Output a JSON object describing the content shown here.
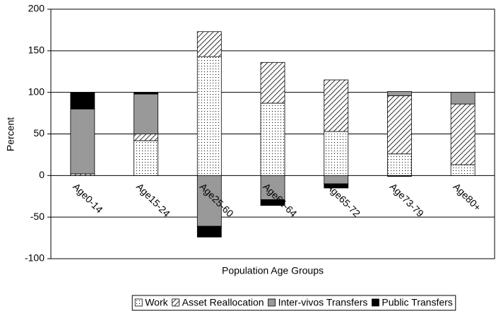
{
  "chart_data": {
    "type": "stacked_bar",
    "x_label": "Population Age Groups",
    "y_label": "Percent",
    "categories": [
      "Age0-14",
      "Age15-24",
      "Age25-60",
      "Age61-64",
      "Age65-72",
      "Age73-79",
      "Age80+"
    ],
    "series": [
      {
        "name": "Work",
        "color": "#ffffff",
        "pattern": "dots",
        "values": [
          0,
          42,
          143,
          87,
          53,
          26,
          13
        ]
      },
      {
        "name": "Asset Reallocation",
        "color": "#ffffff",
        "pattern": "hatch",
        "values": [
          2,
          8,
          30,
          49,
          62,
          70,
          73
        ]
      },
      {
        "name": "Inter-vivos Transfers",
        "color": "#999999",
        "values": [
          78,
          48,
          -61,
          -29,
          -10,
          5,
          14
        ]
      },
      {
        "name": "Public Transfers",
        "color": "#000000",
        "values": [
          20,
          2,
          -13,
          -7,
          -5,
          -1,
          0
        ]
      }
    ],
    "ylim": [
      -100,
      200
    ],
    "yticks": [
      -100,
      -50,
      0,
      50,
      100,
      150,
      200
    ],
    "grid": true,
    "legend": "bottom"
  }
}
